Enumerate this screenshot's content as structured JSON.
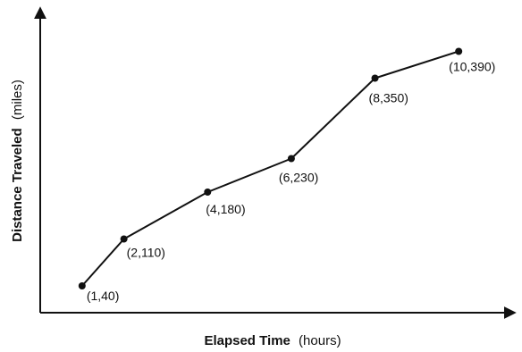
{
  "chart_data": {
    "type": "line",
    "x": [
      1,
      2,
      4,
      6,
      8,
      10
    ],
    "y": [
      40,
      110,
      180,
      230,
      350,
      390
    ],
    "point_labels": [
      "(1,40)",
      "(2,110)",
      "(4,180)",
      "(6,230)",
      "(8,350)",
      "(10,390)"
    ],
    "xlabel": {
      "bold": "Elapsed Time",
      "unit": "(hours)"
    },
    "ylabel": {
      "bold": "Distance Traveled",
      "unit": "(miles)"
    },
    "xlim": [
      0,
      11
    ],
    "ylim": [
      0,
      440
    ],
    "grid": false,
    "ticks": false,
    "colors": {
      "line": "#111111",
      "axis": "#111111"
    }
  }
}
